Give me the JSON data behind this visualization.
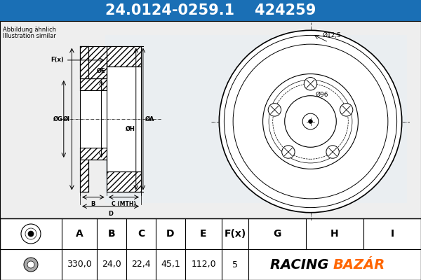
{
  "title_part_number": "24.0124-0259.1",
  "title_ref_number": "424259",
  "title_bg_color": "#1a6fb5",
  "title_text_color": "#ffffff",
  "subtitle_line1": "Abbildung ähnlich",
  "subtitle_line2": "Illustration similar",
  "bg_color": "#f0f0f0",
  "table_headers": [
    "A",
    "B",
    "C",
    "D",
    "E",
    "F(x)",
    "G",
    "H",
    "I"
  ],
  "table_values": [
    "330,0",
    "24,0",
    "22,4",
    "45,1",
    "112,0",
    "5",
    "",
    "",
    ""
  ],
  "dim_diameter_top": "Ø12,5",
  "dim_diameter_bottom": "Ø96",
  "racing_text": "RACING ",
  "bazar_text": "BAZÁR",
  "racing_color": "#000000",
  "bazar_color": "#ff6600"
}
